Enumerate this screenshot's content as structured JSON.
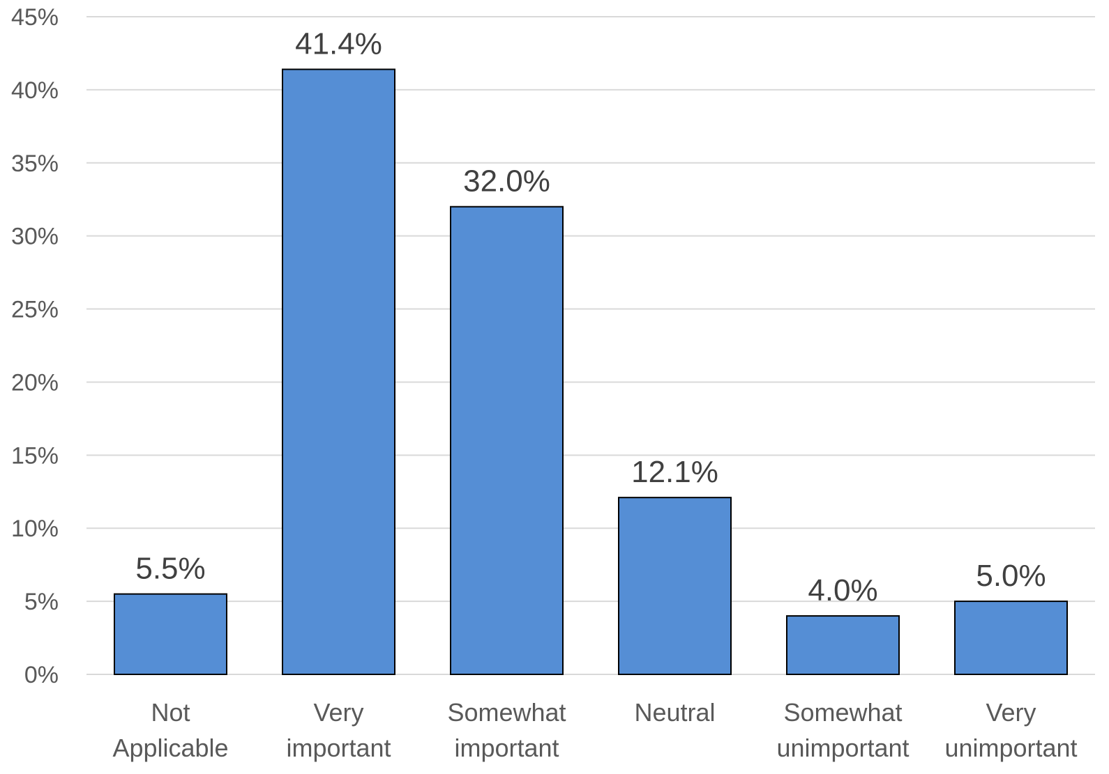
{
  "chart_data": {
    "type": "bar",
    "title": "",
    "xlabel": "",
    "ylabel": "",
    "categories": [
      [
        "Not",
        "Applicable"
      ],
      [
        "Very",
        "important"
      ],
      [
        "Somewhat",
        "important"
      ],
      [
        "Neutral"
      ],
      [
        "Somewhat",
        "unimportant"
      ],
      [
        "Very",
        "unimportant"
      ]
    ],
    "values": [
      5.5,
      41.4,
      32.0,
      12.1,
      4.0,
      5.0
    ],
    "data_labels": [
      "5.5%",
      "41.4%",
      "32.0%",
      "12.1%",
      "4.0%",
      "5.0%"
    ],
    "ylim": [
      0,
      45
    ],
    "y_ticks": [
      0,
      5,
      10,
      15,
      20,
      25,
      30,
      35,
      40,
      45
    ],
    "y_tick_labels": [
      "0%",
      "5%",
      "10%",
      "15%",
      "20%",
      "25%",
      "30%",
      "35%",
      "40%",
      "45%"
    ],
    "grid": true,
    "legend": "none",
    "colors": {
      "bar": "#558ed5",
      "bar_outline": "#000000",
      "grid": "#d9d9d9"
    }
  }
}
